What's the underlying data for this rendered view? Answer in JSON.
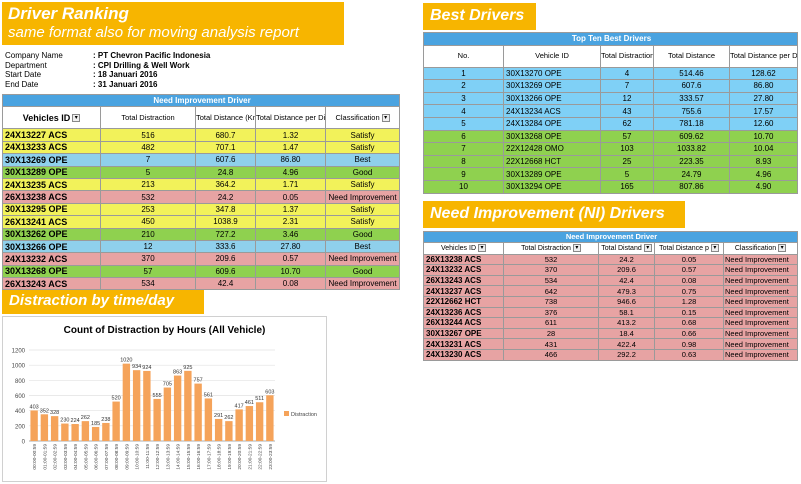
{
  "banners": {
    "ranking_title": "Driver Ranking",
    "ranking_subtitle": "same format also for moving analysis report",
    "best": "Best Drivers",
    "ni": "Need Improvement (NI) Drivers",
    "distraction": "Distraction by time/day"
  },
  "company": [
    {
      "label": "Company Name",
      "value": ": PT Chevron Pacific Indonesia"
    },
    {
      "label": "Department",
      "value": ": CPI Drilling & Well Work"
    },
    {
      "label": "Start Date",
      "value": ": 18 Januari 2016"
    },
    {
      "label": "End Date",
      "value": ": 31 Januari 2016"
    }
  ],
  "ranking": {
    "title": "Need Improvement Driver",
    "headers": [
      "Vehicles ID",
      "Total Distraction",
      "Total Distance (Km)",
      "Total Distance per Distraction (km)",
      "Classification"
    ],
    "rows": [
      {
        "vid": "24X13227 ACS",
        "dist": "516",
        "km": "680.7",
        "per": "1.32",
        "cls": "Satisfy",
        "color": "yellow"
      },
      {
        "vid": "24X13233 ACS",
        "dist": "482",
        "km": "707.1",
        "per": "1.47",
        "cls": "Satisfy",
        "color": "yellow"
      },
      {
        "vid": "30X13269 OPE",
        "dist": "7",
        "km": "607.6",
        "per": "86.80",
        "cls": "Best",
        "color": "blue"
      },
      {
        "vid": "30X13289 OPE",
        "dist": "5",
        "km": "24.8",
        "per": "4.96",
        "cls": "Good",
        "color": "green"
      },
      {
        "vid": "24X13235 ACS",
        "dist": "213",
        "km": "364.2",
        "per": "1.71",
        "cls": "Satisfy",
        "color": "yellow"
      },
      {
        "vid": "26X13238 ACS",
        "dist": "532",
        "km": "24.2",
        "per": "0.05",
        "cls": "Need Improvement",
        "color": "pink"
      },
      {
        "vid": "30X13295 OPE",
        "dist": "253",
        "km": "347.8",
        "per": "1.37",
        "cls": "Satisfy",
        "color": "yellow"
      },
      {
        "vid": "26X13241 ACS",
        "dist": "450",
        "km": "1038.9",
        "per": "2.31",
        "cls": "Satisfy",
        "color": "yellow"
      },
      {
        "vid": "30X13262 OPE",
        "dist": "210",
        "km": "727.2",
        "per": "3.46",
        "cls": "Good",
        "color": "green"
      },
      {
        "vid": "30X13266 OPE",
        "dist": "12",
        "km": "333.6",
        "per": "27.80",
        "cls": "Best",
        "color": "blue"
      },
      {
        "vid": "24X13232 ACS",
        "dist": "370",
        "km": "209.6",
        "per": "0.57",
        "cls": "Need Improvement",
        "color": "pink"
      },
      {
        "vid": "30X13268 OPE",
        "dist": "57",
        "km": "609.6",
        "per": "10.70",
        "cls": "Good",
        "color": "green"
      },
      {
        "vid": "26X13243 ACS",
        "dist": "534",
        "km": "42.4",
        "per": "0.08",
        "cls": "Need Improvement",
        "color": "pink"
      }
    ]
  },
  "best": {
    "title": "Top Ten Best Drivers",
    "headers": [
      "No.",
      "Vehicle ID",
      "Total Distraction",
      "Total Distance",
      "Total Distance per Distraction"
    ],
    "rows": [
      {
        "no": "1",
        "vid": "30X13270 OPE",
        "dist": "4",
        "km": "514.46",
        "per": "128.62",
        "color": "sky"
      },
      {
        "no": "2",
        "vid": "30X13269 OPE",
        "dist": "7",
        "km": "607.6",
        "per": "86.80",
        "color": "sky"
      },
      {
        "no": "3",
        "vid": "30X13266 OPE",
        "dist": "12",
        "km": "333.57",
        "per": "27.80",
        "color": "sky"
      },
      {
        "no": "4",
        "vid": "24X13234 ACS",
        "dist": "43",
        "km": "755.6",
        "per": "17.57",
        "color": "sky"
      },
      {
        "no": "5",
        "vid": "24X13284 OPE",
        "dist": "62",
        "km": "781.18",
        "per": "12.60",
        "color": "sky"
      },
      {
        "no": "6",
        "vid": "30X13268 OPE",
        "dist": "57",
        "km": "609.62",
        "per": "10.70",
        "color": "green"
      },
      {
        "no": "7",
        "vid": "22X12428 OMO",
        "dist": "103",
        "km": "1033.82",
        "per": "10.04",
        "color": "green"
      },
      {
        "no": "8",
        "vid": "22X12668 HCT",
        "dist": "25",
        "km": "223.35",
        "per": "8.93",
        "color": "green"
      },
      {
        "no": "9",
        "vid": "30X13289 OPE",
        "dist": "5",
        "km": "24.79",
        "per": "4.96",
        "color": "green"
      },
      {
        "no": "10",
        "vid": "30X13294 OPE",
        "dist": "165",
        "km": "807.86",
        "per": "4.90",
        "color": "green"
      }
    ]
  },
  "ni": {
    "title": "Need Improvement Driver",
    "headers": [
      "Vehicles ID",
      "Total Distraction",
      "Total Distand",
      "Total Distance p",
      "Classification"
    ],
    "rows": [
      {
        "vid": "26X13238 ACS",
        "dist": "532",
        "km": "24.2",
        "per": "0.05",
        "cls": "Need Improvement"
      },
      {
        "vid": "24X13232 ACS",
        "dist": "370",
        "km": "209.6",
        "per": "0.57",
        "cls": "Need Improvement"
      },
      {
        "vid": "26X13243 ACS",
        "dist": "534",
        "km": "42.4",
        "per": "0.08",
        "cls": "Need Improvement"
      },
      {
        "vid": "24X13237 ACS",
        "dist": "642",
        "km": "479.3",
        "per": "0.75",
        "cls": "Need Improvement"
      },
      {
        "vid": "22X12662 HCT",
        "dist": "738",
        "km": "946.6",
        "per": "1.28",
        "cls": "Need Improvement"
      },
      {
        "vid": "24X13236 ACS",
        "dist": "376",
        "km": "58.1",
        "per": "0.15",
        "cls": "Need Improvement"
      },
      {
        "vid": "26X13244 ACS",
        "dist": "611",
        "km": "413.2",
        "per": "0.68",
        "cls": "Need Improvement"
      },
      {
        "vid": "30X13267 OPE",
        "dist": "28",
        "km": "18.4",
        "per": "0.66",
        "cls": "Need Improvement"
      },
      {
        "vid": "24X13231 ACS",
        "dist": "431",
        "km": "422.4",
        "per": "0.98",
        "cls": "Need Improvement"
      },
      {
        "vid": "24X13230 ACS",
        "dist": "466",
        "km": "292.2",
        "per": "0.63",
        "cls": "Need Improvement"
      }
    ]
  },
  "colors": {
    "bar": "#f5a35a",
    "accent": "#f7b500",
    "header": "#4aa3e0"
  },
  "chart_data": {
    "type": "bar",
    "title": "Count of Distraction by Hours (All Vehicle)",
    "legend": "Distraction",
    "legend_position": "right",
    "ylim": [
      0,
      1200
    ],
    "yticks": [
      0,
      200,
      400,
      600,
      800,
      1000,
      1200
    ],
    "categories": [
      "00:00-00:59",
      "01:00-01:59",
      "02:00-02:59",
      "03:00-03:59",
      "04:00-04:59",
      "05:00-05:59",
      "06:00-06:59",
      "07:00-07:59",
      "08:00-08:59",
      "09:00-09:59",
      "10:00-10:59",
      "11:00-11:59",
      "12:00-12:59",
      "13:00-13:59",
      "14:00-14:59",
      "15:00-15:59",
      "16:00-16:59",
      "17:00-17:59",
      "18:00-18:59",
      "19:00-19:59",
      "20:00-20:59",
      "21:00-21:59",
      "22:00-22:59",
      "23:00-23:59"
    ],
    "values": [
      403,
      352,
      328,
      230,
      224,
      262,
      185,
      238,
      520,
      1020,
      934,
      924,
      555,
      705,
      863,
      925,
      757,
      561,
      291,
      262,
      417,
      461,
      511,
      603
    ]
  }
}
